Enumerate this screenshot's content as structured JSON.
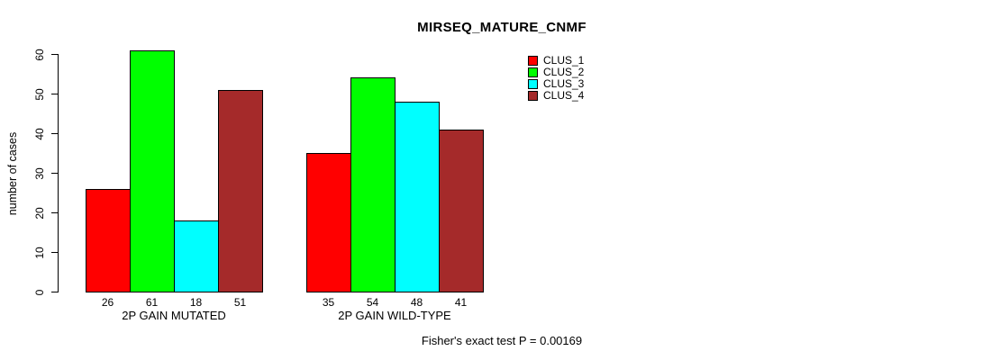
{
  "title": "MIRSEQ_MATURE_CNMF",
  "annotation": "Fisher's exact test P = 0.00169",
  "colors": {
    "clus_1": "#FF0000",
    "clus_2": "#00FF00",
    "clus_3": "#00FFFF",
    "clus_4": "#A52A2A",
    "axis": "#000000",
    "background": "#FFFFFF"
  },
  "chart_data": {
    "type": "bar",
    "title": "MIRSEQ_MATURE_CNMF",
    "xlabel": "",
    "ylabel": "number of cases",
    "ylim": [
      0,
      60
    ],
    "yticks": [
      0,
      10,
      20,
      30,
      40,
      50,
      60
    ],
    "grid": false,
    "legend_position": "top-right",
    "bar_value_labels": true,
    "categories": [
      "2P GAIN MUTATED",
      "2P GAIN WILD-TYPE"
    ],
    "series": [
      {
        "name": "CLUS_1",
        "color": "#FF0000",
        "values": [
          26,
          35
        ]
      },
      {
        "name": "CLUS_2",
        "color": "#00FF00",
        "values": [
          61,
          54
        ]
      },
      {
        "name": "CLUS_3",
        "color": "#00FFFF",
        "values": [
          18,
          48
        ]
      },
      {
        "name": "CLUS_4",
        "color": "#A52A2A",
        "values": [
          51,
          41
        ]
      }
    ],
    "annotation": "Fisher's exact test P = 0.00169"
  }
}
